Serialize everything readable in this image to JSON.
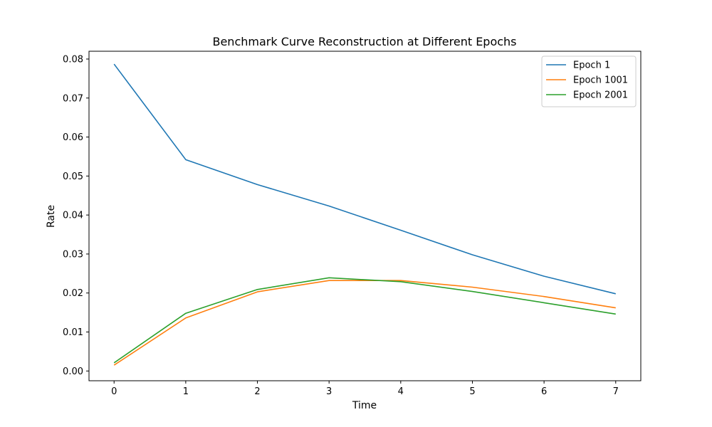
{
  "chart_data": {
    "type": "line",
    "title": "Benchmark Curve Reconstruction at Different Epochs",
    "xlabel": "Time",
    "ylabel": "Rate",
    "x": [
      0,
      1,
      2,
      3,
      4,
      5,
      6,
      7
    ],
    "xlim": [
      -0.35,
      7.35
    ],
    "ylim": [
      -0.0025,
      0.082
    ],
    "xticks": [
      "0",
      "1",
      "2",
      "3",
      "4",
      "5",
      "6",
      "7"
    ],
    "yticks": [
      "0.00",
      "0.01",
      "0.02",
      "0.03",
      "0.04",
      "0.05",
      "0.06",
      "0.07",
      "0.08"
    ],
    "grid": false,
    "legend_position": "top-right",
    "series": [
      {
        "name": "Epoch 1",
        "color": "#1f77b4",
        "values": [
          0.0787,
          0.0542,
          0.0478,
          0.0423,
          0.0361,
          0.0298,
          0.0243,
          0.0198
        ]
      },
      {
        "name": "Epoch 1001",
        "color": "#ff7f0e",
        "values": [
          0.0015,
          0.0136,
          0.0203,
          0.0232,
          0.0232,
          0.0215,
          0.0191,
          0.0162
        ]
      },
      {
        "name": "Epoch 2001",
        "color": "#2ca02c",
        "values": [
          0.0021,
          0.0148,
          0.0209,
          0.0239,
          0.0229,
          0.0204,
          0.0175,
          0.0146
        ]
      }
    ]
  }
}
